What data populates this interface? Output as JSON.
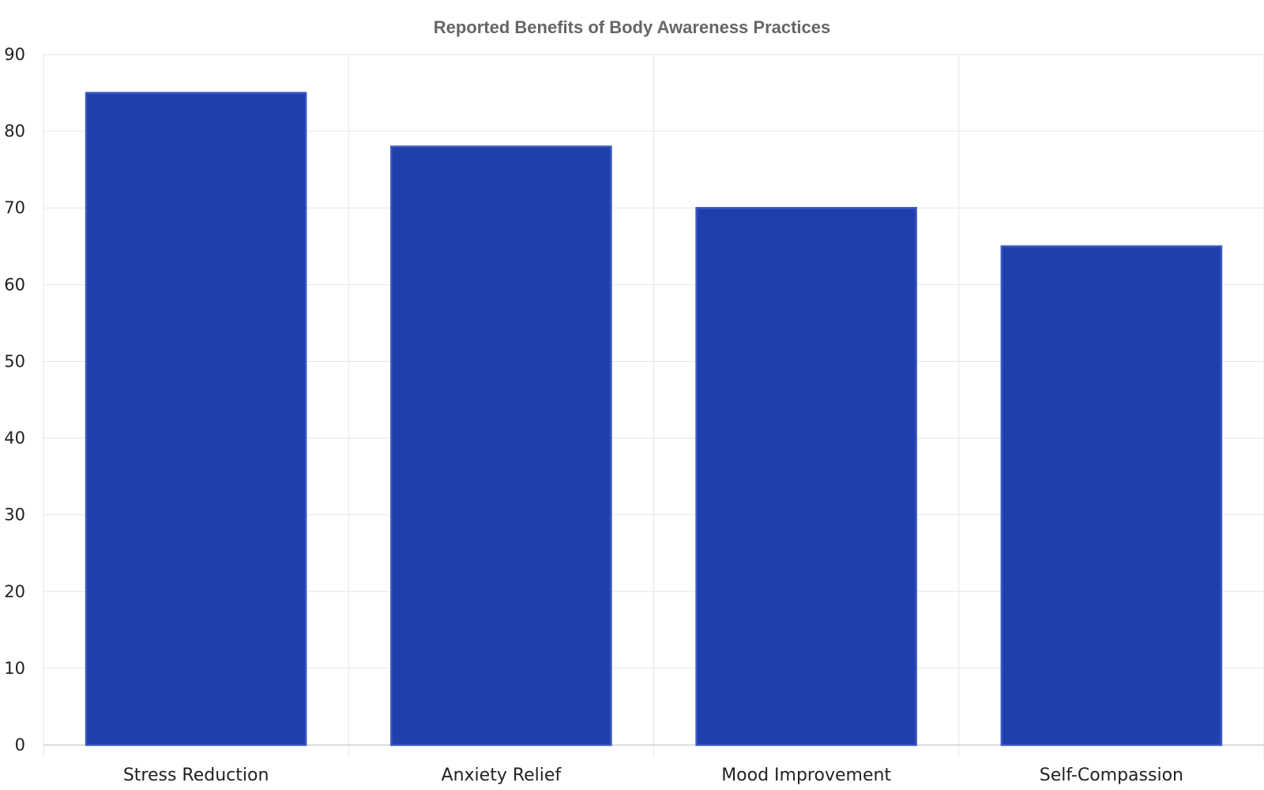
{
  "chart_data": {
    "type": "bar",
    "title": "Reported Benefits of Body Awareness Practices",
    "xlabel": "",
    "ylabel": "",
    "categories": [
      "Stress Reduction",
      "Anxiety Relief",
      "Mood Improvement",
      "Self-Compassion"
    ],
    "values": [
      85,
      78,
      70,
      65
    ],
    "ylim": [
      0,
      90
    ],
    "yticks": [
      "0",
      "10",
      "20",
      "30",
      "40",
      "50",
      "60",
      "70",
      "80",
      "90"
    ],
    "grid": true,
    "legend": "none",
    "colors": {
      "bar": "#1f3fab",
      "bar_edge": "#3b57c4",
      "grid": "#e6e6e6",
      "title": "#666666"
    }
  }
}
